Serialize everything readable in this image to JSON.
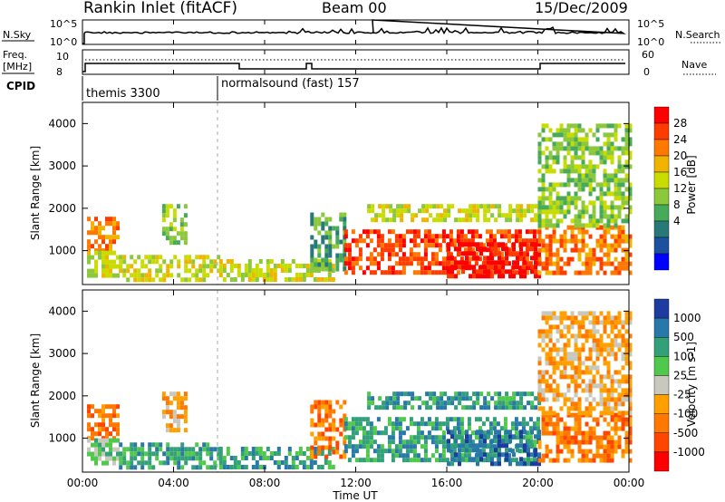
{
  "header": {
    "station": "Rankin Inlet (fitACF)",
    "beam": "Beam 00",
    "date": "15/Dec/2009"
  },
  "nsky_panel": {
    "left_label": "N.Sky",
    "right_label": "N.Search",
    "left_ticks": [
      "10^5",
      "10^0"
    ],
    "right_ticks": [
      "10^5",
      "10^0"
    ]
  },
  "freq_panel": {
    "left_label_1": "Freq.",
    "left_label_2": "[MHz]",
    "right_label": "Nave",
    "left_ticks": [
      "10",
      "8"
    ],
    "right_ticks": [
      "60",
      "0"
    ]
  },
  "cpid": {
    "label": "CPID",
    "modes": [
      "themis 3300",
      "normalsound (fast) 157"
    ]
  },
  "power_colorbar": {
    "title": "Power [dB]",
    "ticks": [
      "28",
      "24",
      "20",
      "16",
      "12",
      "8",
      "4"
    ],
    "colors": [
      "#ff0000",
      "#ff3c00",
      "#ff7800",
      "#f0b400",
      "#c8dc00",
      "#8cc83c",
      "#46aa5a",
      "#287878",
      "#1e50a0",
      "#0000ff"
    ]
  },
  "velocity_colorbar": {
    "title": "Velocity [m s-1]",
    "ticks": [
      "1000",
      "500",
      "100",
      "25",
      "-25",
      "-100",
      "-500",
      "-1000"
    ],
    "colors": [
      "#1e3ca0",
      "#2878aa",
      "#32a078",
      "#50c84b",
      "#c8c8be",
      "#ffa000",
      "#ff7800",
      "#ff4600",
      "#ff0000"
    ]
  },
  "chart_data": [
    {
      "type": "heatmap",
      "panel": "power",
      "ylabel": "Slant Range [km]",
      "xlabel": "Time UT",
      "ylim": [
        200,
        4500
      ],
      "xlim": [
        "00:00",
        "24:00"
      ],
      "x_ticks": [
        "00:00",
        "04:00",
        "08:00",
        "12:00",
        "16:00",
        "20:00",
        "00:00"
      ],
      "y_ticks": [
        "1000",
        "2000",
        "3000",
        "4000"
      ],
      "regions": [
        {
          "t0": 0.2,
          "t1": 1.6,
          "r0": 1000,
          "r1": 1800,
          "level": 7
        },
        {
          "t0": 0.2,
          "t1": 1.6,
          "r0": 400,
          "r1": 1000,
          "level": 5
        },
        {
          "t0": 1.6,
          "t1": 6.0,
          "r0": 300,
          "r1": 900,
          "level": 5
        },
        {
          "t0": 3.5,
          "t1": 4.5,
          "r0": 1200,
          "r1": 2100,
          "level": 4
        },
        {
          "t0": 6.0,
          "t1": 11.0,
          "r0": 300,
          "r1": 800,
          "level": 5
        },
        {
          "t0": 10.0,
          "t1": 11.5,
          "r0": 600,
          "r1": 1900,
          "level": 3
        },
        {
          "t0": 11.5,
          "t1": 20.0,
          "r0": 500,
          "r1": 1500,
          "level": 8
        },
        {
          "t0": 16.0,
          "t1": 20.0,
          "r0": 400,
          "r1": 1200,
          "level": 9
        },
        {
          "t0": 12.5,
          "t1": 20.0,
          "r0": 1700,
          "r1": 2100,
          "level": 5
        },
        {
          "t0": 20.0,
          "t1": 24.0,
          "r0": 500,
          "r1": 1600,
          "level": 7
        },
        {
          "t0": 20.0,
          "t1": 24.0,
          "r0": 1600,
          "r1": 4000,
          "level": 4
        }
      ]
    },
    {
      "type": "heatmap",
      "panel": "velocity",
      "ylabel": "Slant Range [km]",
      "xlabel": "Time UT",
      "ylim": [
        200,
        4500
      ],
      "xlim": [
        "00:00",
        "24:00"
      ],
      "x_ticks": [
        "00:00",
        "04:00",
        "08:00",
        "12:00",
        "16:00",
        "20:00",
        "00:00"
      ],
      "y_ticks": [
        "1000",
        "2000",
        "3000",
        "4000"
      ],
      "regions": [
        {
          "t0": 0.2,
          "t1": 1.6,
          "r0": 1000,
          "r1": 1800,
          "level": 2
        },
        {
          "t0": 0.2,
          "t1": 1.6,
          "r0": 400,
          "r1": 1000,
          "level": 5
        },
        {
          "t0": 1.6,
          "t1": 6.0,
          "r0": 300,
          "r1": 900,
          "level": 6
        },
        {
          "t0": 3.5,
          "t1": 4.5,
          "r0": 1200,
          "r1": 2100,
          "level": 3
        },
        {
          "t0": 6.0,
          "t1": 11.0,
          "r0": 300,
          "r1": 800,
          "level": 6
        },
        {
          "t0": 10.0,
          "t1": 11.5,
          "r0": 600,
          "r1": 1900,
          "level": 2
        },
        {
          "t0": 11.5,
          "t1": 20.0,
          "r0": 500,
          "r1": 1500,
          "level": 6
        },
        {
          "t0": 16.0,
          "t1": 20.0,
          "r0": 400,
          "r1": 1200,
          "level": 7
        },
        {
          "t0": 12.5,
          "t1": 20.0,
          "r0": 1700,
          "r1": 2100,
          "level": 6
        },
        {
          "t0": 20.0,
          "t1": 24.0,
          "r0": 500,
          "r1": 1600,
          "level": 2
        },
        {
          "t0": 20.0,
          "t1": 24.0,
          "r0": 1600,
          "r1": 4000,
          "level": 3
        }
      ]
    }
  ],
  "time_axis_label": "Time UT"
}
